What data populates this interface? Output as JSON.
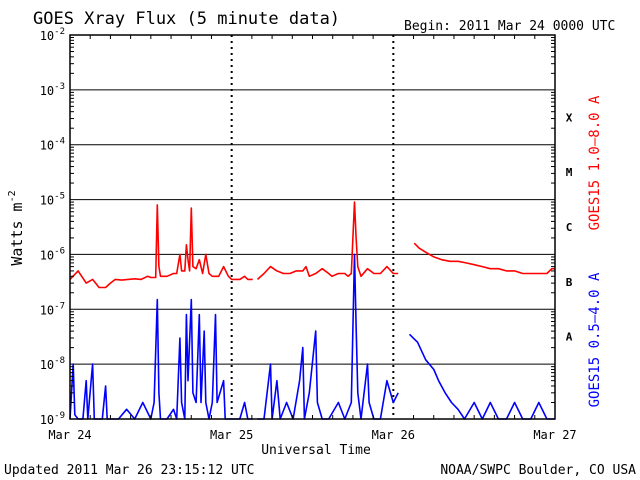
{
  "chart_data": {
    "type": "line",
    "title": "GOES Xray Flux (5 minute data)",
    "begin": "Begin:  2011 Mar 24 0000 UTC",
    "xlabel": "Universal Time",
    "ylabel_base": "Watts m",
    "ylabel_exp": "-2",
    "updated": "Updated 2011 Mar 26 23:15:12 UTC",
    "credit": "NOAA/SWPC Boulder, CO USA",
    "y_scale": "log",
    "ylim": [
      1e-09,
      0.01
    ],
    "y_ticks": [
      {
        "base": "10",
        "exp": "-2"
      },
      {
        "base": "10",
        "exp": "-3"
      },
      {
        "base": "10",
        "exp": "-4"
      },
      {
        "base": "10",
        "exp": "-5"
      },
      {
        "base": "10",
        "exp": "-6"
      },
      {
        "base": "10",
        "exp": "-7"
      },
      {
        "base": "10",
        "exp": "-8"
      },
      {
        "base": "10",
        "exp": "-9"
      }
    ],
    "x_range_days": [
      0,
      3
    ],
    "x_ticks": [
      "Mar 24",
      "Mar 25",
      "Mar 26",
      "Mar 27"
    ],
    "flare_classes": [
      {
        "label": "X",
        "level": 0.0001
      },
      {
        "label": "M",
        "level": 1e-05
      },
      {
        "label": "C",
        "level": 1e-06
      },
      {
        "label": "B",
        "level": 1e-07
      },
      {
        "label": "A",
        "level": 1e-08
      }
    ],
    "grid": true,
    "series": [
      {
        "name": "GOES15 1.0–8.0 A",
        "color": "#ff0000",
        "segments": [
          [
            [
              0.0,
              3.5e-07
            ],
            [
              0.05,
              5e-07
            ],
            [
              0.1,
              3e-07
            ],
            [
              0.14,
              3.5e-07
            ],
            [
              0.18,
              2.5e-07
            ],
            [
              0.22,
              2.5e-07
            ],
            [
              0.25,
              3e-07
            ],
            [
              0.28,
              3.5e-07
            ],
            [
              0.32,
              3.4e-07
            ],
            [
              0.36,
              3.5e-07
            ],
            [
              0.4,
              3.6e-07
            ],
            [
              0.44,
              3.5e-07
            ],
            [
              0.48,
              4e-07
            ],
            [
              0.5,
              3.8e-07
            ],
            [
              0.53,
              3.8e-07
            ],
            [
              0.54,
              8e-06
            ],
            [
              0.55,
              6e-07
            ],
            [
              0.56,
              4e-07
            ],
            [
              0.6,
              4e-07
            ],
            [
              0.64,
              4.5e-07
            ],
            [
              0.66,
              4.5e-07
            ],
            [
              0.68,
              1e-06
            ],
            [
              0.69,
              5e-07
            ],
            [
              0.71,
              5e-07
            ],
            [
              0.72,
              1.5e-06
            ],
            [
              0.73,
              8e-07
            ],
            [
              0.74,
              5e-07
            ],
            [
              0.75,
              7e-06
            ],
            [
              0.76,
              6e-07
            ],
            [
              0.78,
              5.5e-07
            ],
            [
              0.8,
              8e-07
            ],
            [
              0.82,
              4.5e-07
            ],
            [
              0.84,
              1e-06
            ],
            [
              0.86,
              4.5e-07
            ],
            [
              0.88,
              4e-07
            ],
            [
              0.92,
              4e-07
            ],
            [
              0.95,
              6e-07
            ],
            [
              0.98,
              4e-07
            ],
            [
              1.0,
              3.5e-07
            ],
            [
              1.05,
              3.5e-07
            ],
            [
              1.08,
              4e-07
            ],
            [
              1.1,
              3.5e-07
            ],
            [
              1.13,
              3.5e-07
            ]
          ],
          [
            [
              1.16,
              3.5e-07
            ],
            [
              1.2,
              4.5e-07
            ],
            [
              1.24,
              6e-07
            ],
            [
              1.28,
              5e-07
            ],
            [
              1.32,
              4.5e-07
            ],
            [
              1.36,
              4.5e-07
            ],
            [
              1.4,
              5e-07
            ],
            [
              1.44,
              5e-07
            ],
            [
              1.46,
              6e-07
            ],
            [
              1.48,
              4e-07
            ],
            [
              1.52,
              4.5e-07
            ],
            [
              1.56,
              5.5e-07
            ],
            [
              1.6,
              4.5e-07
            ],
            [
              1.62,
              4e-07
            ],
            [
              1.66,
              4.5e-07
            ],
            [
              1.7,
              4.5e-07
            ],
            [
              1.72,
              4e-07
            ],
            [
              1.74,
              4.5e-07
            ],
            [
              1.76,
              9e-06
            ],
            [
              1.77,
              2e-06
            ],
            [
              1.78,
              6e-07
            ],
            [
              1.8,
              4e-07
            ],
            [
              1.84,
              5.5e-07
            ],
            [
              1.88,
              4.5e-07
            ],
            [
              1.92,
              4.5e-07
            ],
            [
              1.96,
              6e-07
            ],
            [
              2.0,
              4.5e-07
            ],
            [
              2.03,
              4.5e-07
            ]
          ],
          [
            [
              2.13,
              1.6e-06
            ],
            [
              2.16,
              1.3e-06
            ],
            [
              2.2,
              1.1e-06
            ],
            [
              2.25,
              9e-07
            ],
            [
              2.3,
              8e-07
            ],
            [
              2.35,
              7.5e-07
            ],
            [
              2.4,
              7.5e-07
            ],
            [
              2.45,
              7e-07
            ],
            [
              2.5,
              6.5e-07
            ],
            [
              2.55,
              6e-07
            ],
            [
              2.6,
              5.5e-07
            ],
            [
              2.65,
              5.5e-07
            ],
            [
              2.7,
              5e-07
            ],
            [
              2.75,
              5e-07
            ],
            [
              2.8,
              4.5e-07
            ],
            [
              2.85,
              4.5e-07
            ],
            [
              2.9,
              4.5e-07
            ],
            [
              2.95,
              4.5e-07
            ],
            [
              2.98,
              5.5e-07
            ],
            [
              3.0,
              5.5e-07
            ]
          ]
        ]
      },
      {
        "name": "GOES15 0.5–4.0 A",
        "color": "#0000ff",
        "segments": [
          [
            [
              0.0,
              1e-09
            ],
            [
              0.02,
              1e-08
            ],
            [
              0.03,
              1.2e-09
            ],
            [
              0.05,
              1e-09
            ],
            [
              0.08,
              1e-09
            ],
            [
              0.1,
              5e-09
            ],
            [
              0.11,
              1e-09
            ],
            [
              0.14,
              1e-08
            ],
            [
              0.15,
              1e-09
            ],
            [
              0.2,
              1e-09
            ],
            [
              0.22,
              4e-09
            ],
            [
              0.23,
              1e-09
            ],
            [
              0.3,
              1e-09
            ],
            [
              0.35,
              1.5e-09
            ],
            [
              0.4,
              1e-09
            ],
            [
              0.45,
              2e-09
            ],
            [
              0.5,
              1e-09
            ],
            [
              0.52,
              2e-09
            ],
            [
              0.54,
              1.5e-07
            ],
            [
              0.55,
              3e-09
            ],
            [
              0.56,
              1e-09
            ],
            [
              0.6,
              1e-09
            ],
            [
              0.64,
              1.5e-09
            ],
            [
              0.66,
              1e-09
            ],
            [
              0.68,
              3e-08
            ],
            [
              0.69,
              2e-09
            ],
            [
              0.71,
              1e-09
            ],
            [
              0.72,
              8e-08
            ],
            [
              0.73,
              5e-09
            ],
            [
              0.75,
              1.5e-07
            ],
            [
              0.76,
              3e-09
            ],
            [
              0.78,
              2e-09
            ],
            [
              0.8,
              8e-08
            ],
            [
              0.81,
              2e-09
            ],
            [
              0.83,
              4e-08
            ],
            [
              0.84,
              2e-09
            ],
            [
              0.86,
              1e-09
            ],
            [
              0.88,
              2e-09
            ],
            [
              0.9,
              8e-08
            ],
            [
              0.91,
              2e-09
            ],
            [
              0.95,
              5e-09
            ],
            [
              0.96,
              1e-09
            ],
            [
              1.0,
              1e-09
            ],
            [
              1.05,
              1e-09
            ],
            [
              1.08,
              2e-09
            ],
            [
              1.1,
              1e-09
            ],
            [
              1.13,
              1e-09
            ]
          ],
          [
            [
              1.16,
              1e-09
            ],
            [
              1.2,
              1e-09
            ],
            [
              1.24,
              1e-08
            ],
            [
              1.25,
              1e-09
            ],
            [
              1.28,
              5e-09
            ],
            [
              1.3,
              1e-09
            ],
            [
              1.34,
              2e-09
            ],
            [
              1.38,
              1e-09
            ],
            [
              1.42,
              5e-09
            ],
            [
              1.44,
              2e-08
            ],
            [
              1.45,
              1e-09
            ],
            [
              1.48,
              3e-09
            ],
            [
              1.52,
              4e-08
            ],
            [
              1.53,
              2e-09
            ],
            [
              1.56,
              1e-09
            ],
            [
              1.6,
              1e-09
            ],
            [
              1.66,
              2e-09
            ],
            [
              1.7,
              1e-09
            ],
            [
              1.74,
              2e-09
            ],
            [
              1.76,
              1e-06
            ],
            [
              1.77,
              5e-08
            ],
            [
              1.78,
              3e-09
            ],
            [
              1.8,
              1e-09
            ],
            [
              1.84,
              1e-08
            ],
            [
              1.85,
              2e-09
            ],
            [
              1.88,
              1e-09
            ],
            [
              1.92,
              1e-09
            ],
            [
              1.96,
              5e-09
            ],
            [
              2.0,
              2e-09
            ],
            [
              2.03,
              3e-09
            ]
          ],
          [
            [
              2.1,
              3.5e-08
            ],
            [
              2.15,
              2.5e-08
            ],
            [
              2.2,
              1.2e-08
            ],
            [
              2.25,
              8e-09
            ],
            [
              2.28,
              5e-09
            ],
            [
              2.32,
              3e-09
            ],
            [
              2.36,
              2e-09
            ],
            [
              2.4,
              1.5e-09
            ],
            [
              2.44,
              1e-09
            ],
            [
              2.5,
              2e-09
            ],
            [
              2.55,
              1e-09
            ],
            [
              2.6,
              2e-09
            ],
            [
              2.65,
              1e-09
            ],
            [
              2.7,
              1e-09
            ],
            [
              2.75,
              2e-09
            ],
            [
              2.8,
              1e-09
            ],
            [
              2.85,
              1e-09
            ],
            [
              2.9,
              2e-09
            ],
            [
              2.95,
              1e-09
            ],
            [
              3.0,
              1e-09
            ]
          ]
        ]
      }
    ]
  }
}
